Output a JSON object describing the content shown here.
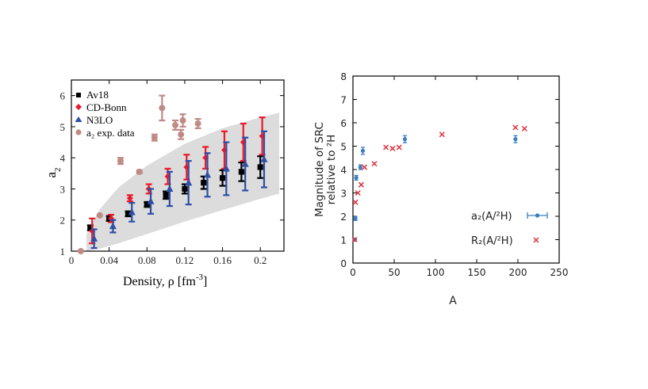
{
  "chart_data": [
    {
      "type": "scatter",
      "xlabel": "Density, ρ [fm",
      "xlabel_sup": "-3",
      "xlabel_close": "]",
      "ylabel_main": "a",
      "ylabel_sub": "2",
      "xlim": [
        0,
        0.225
      ],
      "ylim": [
        1,
        6.5
      ],
      "xticks": [
        0,
        0.04,
        0.08,
        0.12,
        0.16,
        0.2
      ],
      "xtick_labels": [
        "0",
        "0.04",
        "0.08",
        "0.12",
        "0.16",
        "0.2"
      ],
      "yticks": [
        1,
        2,
        3,
        4,
        5,
        6
      ],
      "ytick_labels": [
        "1",
        "2",
        "3",
        "4",
        "5",
        "6"
      ],
      "legend_position": "top-left",
      "band": {
        "x": [
          0.016,
          0.03,
          0.05,
          0.08,
          0.12,
          0.16,
          0.2,
          0.22
        ],
        "lower": [
          1.0,
          1.08,
          1.25,
          1.55,
          1.95,
          2.32,
          2.68,
          2.85
        ],
        "upper": [
          1.55,
          2.35,
          3.05,
          3.75,
          4.45,
          4.95,
          5.3,
          5.45
        ]
      },
      "series": [
        {
          "name": "Av18",
          "color": "#000000",
          "marker": "square",
          "points": [
            {
              "x": 0.02,
              "y": 1.75,
              "err": 0.08
            },
            {
              "x": 0.04,
              "y": 2.05,
              "err": 0.08
            },
            {
              "x": 0.06,
              "y": 2.2,
              "err": 0.08
            },
            {
              "x": 0.08,
              "y": 2.5,
              "err": 0.08
            },
            {
              "x": 0.1,
              "y": 2.8,
              "err": 0.12
            },
            {
              "x": 0.12,
              "y": 3.0,
              "err": 0.15
            },
            {
              "x": 0.14,
              "y": 3.2,
              "err": 0.2
            },
            {
              "x": 0.16,
              "y": 3.35,
              "err": 0.25
            },
            {
              "x": 0.18,
              "y": 3.55,
              "err": 0.3
            },
            {
              "x": 0.2,
              "y": 3.7,
              "err": 0.35
            }
          ]
        },
        {
          "name": "CD-Bonn",
          "color": "#e8192c",
          "marker": "diamond",
          "points": [
            {
              "x": 0.022,
              "y": 1.65,
              "err": 0.4
            },
            {
              "x": 0.042,
              "y": 2.05,
              "err": 0.12
            },
            {
              "x": 0.062,
              "y": 2.7,
              "err": 0.1
            },
            {
              "x": 0.082,
              "y": 3.0,
              "err": 0.15
            },
            {
              "x": 0.102,
              "y": 3.4,
              "err": 0.25
            },
            {
              "x": 0.122,
              "y": 3.7,
              "err": 0.4
            },
            {
              "x": 0.142,
              "y": 4.0,
              "err": 0.35
            },
            {
              "x": 0.162,
              "y": 4.25,
              "err": 0.6
            },
            {
              "x": 0.182,
              "y": 4.5,
              "err": 0.6
            },
            {
              "x": 0.202,
              "y": 4.7,
              "err": 0.6
            }
          ]
        },
        {
          "name": "N3LO",
          "color": "#2f4fa5",
          "marker": "triangle",
          "points": [
            {
              "x": 0.024,
              "y": 1.4,
              "err": 0.3
            },
            {
              "x": 0.044,
              "y": 1.8,
              "err": 0.2
            },
            {
              "x": 0.064,
              "y": 2.25,
              "err": 0.3
            },
            {
              "x": 0.084,
              "y": 2.6,
              "err": 0.4
            },
            {
              "x": 0.104,
              "y": 3.0,
              "err": 0.55
            },
            {
              "x": 0.124,
              "y": 3.2,
              "err": 0.7
            },
            {
              "x": 0.144,
              "y": 3.45,
              "err": 0.7
            },
            {
              "x": 0.164,
              "y": 3.65,
              "err": 0.85
            },
            {
              "x": 0.184,
              "y": 3.8,
              "err": 0.85
            },
            {
              "x": 0.204,
              "y": 3.95,
              "err": 0.9
            }
          ]
        },
        {
          "name": "a₂ exp. data",
          "color": "#bf8b86",
          "marker": "circle",
          "points": [
            {
              "x": 0.01,
              "y": 1.0,
              "err": 0.0
            },
            {
              "x": 0.03,
              "y": 2.15,
              "err": 0.0
            },
            {
              "x": 0.052,
              "y": 3.9,
              "err": 0.1
            },
            {
              "x": 0.072,
              "y": 3.55,
              "err": 0.05
            },
            {
              "x": 0.088,
              "y": 4.65,
              "err": 0.1
            },
            {
              "x": 0.096,
              "y": 5.6,
              "err": 0.4
            },
            {
              "x": 0.11,
              "y": 5.05,
              "err": 0.15
            },
            {
              "x": 0.116,
              "y": 4.75,
              "err": 0.15
            },
            {
              "x": 0.118,
              "y": 5.2,
              "err": 0.2
            },
            {
              "x": 0.134,
              "y": 5.1,
              "err": 0.15
            }
          ]
        }
      ]
    },
    {
      "type": "scatter",
      "xlabel": "A",
      "ylabel_line1": "Magnitude of SRC",
      "ylabel_line2": "relative to ²H",
      "xlim": [
        0,
        250
      ],
      "ylim": [
        0,
        8
      ],
      "xticks": [
        0,
        50,
        100,
        150,
        200,
        250
      ],
      "xtick_labels": [
        "0",
        "50",
        "100",
        "150",
        "200",
        "250"
      ],
      "yticks": [
        0,
        1,
        2,
        3,
        4,
        5,
        6,
        7,
        8
      ],
      "ytick_labels": [
        "0",
        "1",
        "2",
        "3",
        "4",
        "5",
        "6",
        "7",
        "8"
      ],
      "legend_position": "bottom-right",
      "series": [
        {
          "name": "a₂(A/²H)",
          "color": "#3a7fc1",
          "marker": "circle",
          "points": [
            {
              "x": 2,
              "y": 1.0,
              "err": 0.05
            },
            {
              "x": 3,
              "y": 1.9,
              "err": 0.08
            },
            {
              "x": 4,
              "y": 3.65,
              "err": 0.1
            },
            {
              "x": 9,
              "y": 4.1,
              "err": 0.1
            },
            {
              "x": 12,
              "y": 4.8,
              "err": 0.15
            },
            {
              "x": 63,
              "y": 5.3,
              "err": 0.15
            },
            {
              "x": 197,
              "y": 5.3,
              "err": 0.15
            }
          ]
        },
        {
          "name": "R₂(A/²H)",
          "color": "#e0303a",
          "marker": "x",
          "points": [
            {
              "x": 2,
              "y": 1.0
            },
            {
              "x": 3,
              "y": 2.6
            },
            {
              "x": 6,
              "y": 3.0
            },
            {
              "x": 10,
              "y": 3.35
            },
            {
              "x": 14,
              "y": 4.1
            },
            {
              "x": 26,
              "y": 4.25
            },
            {
              "x": 40,
              "y": 4.95
            },
            {
              "x": 48,
              "y": 4.9
            },
            {
              "x": 56,
              "y": 4.95
            },
            {
              "x": 108,
              "y": 5.5
            },
            {
              "x": 197,
              "y": 5.8
            },
            {
              "x": 208,
              "y": 5.75
            }
          ]
        }
      ]
    }
  ]
}
